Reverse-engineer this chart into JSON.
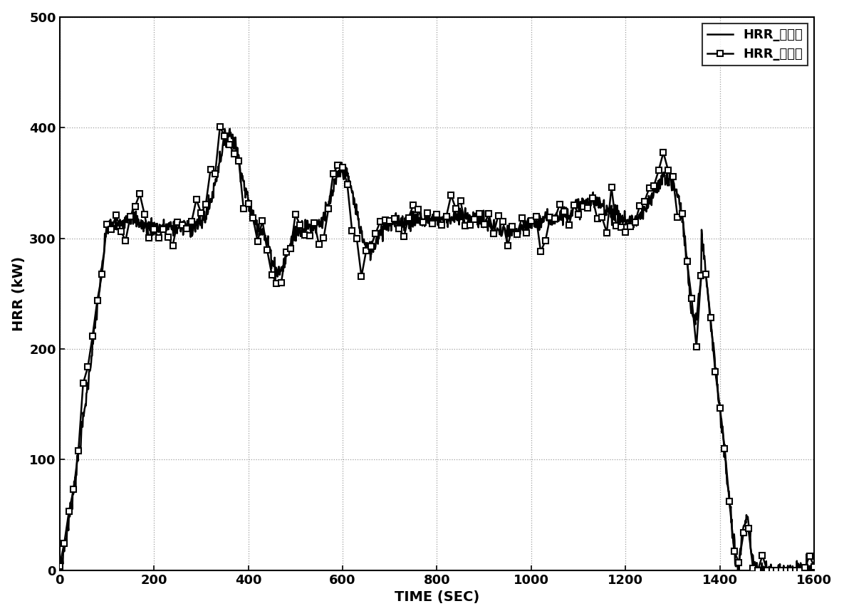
{
  "title": "",
  "xlabel": "TIME (SEC)",
  "ylabel": "HRR (kW)",
  "xlim": [
    0,
    1600
  ],
  "ylim": [
    0,
    500
  ],
  "xticks": [
    0,
    200,
    400,
    600,
    800,
    1000,
    1200,
    1400,
    1600
  ],
  "yticks": [
    0,
    100,
    200,
    300,
    400,
    500
  ],
  "legend1": "HRR_计算值",
  "legend2": "HRR_实验值",
  "line_color": "#000000",
  "bg_color": "#ffffff",
  "grid_color": "#888888",
  "xlabel_fontsize": 14,
  "ylabel_fontsize": 14,
  "tick_fontsize": 13,
  "legend_fontsize": 13
}
